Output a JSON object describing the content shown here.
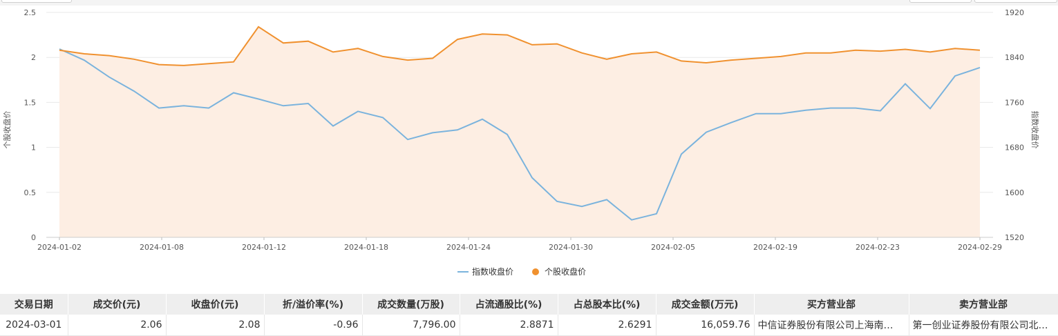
{
  "chart_data": {
    "type": "line",
    "x_ticks": [
      "2024-01-02",
      "2024-01-08",
      "2024-01-12",
      "2024-01-18",
      "2024-01-24",
      "2024-01-30",
      "2024-02-05",
      "2024-02-19",
      "2024-02-23",
      "2024-02-29"
    ],
    "y_left": {
      "label": "个股收盘价",
      "ticks": [
        "0",
        "0.5",
        "1",
        "1.5",
        "2",
        "2.5"
      ],
      "range": [
        0,
        2.5
      ]
    },
    "y_right": {
      "label": "指数收盘价",
      "ticks": [
        "1520",
        "1600",
        "1680",
        "1760",
        "1840",
        "1920"
      ],
      "range": [
        1520,
        1920
      ]
    },
    "series": [
      {
        "name": "指数收盘价",
        "axis": "right",
        "color": "#7ab3dd",
        "values": [
          1855,
          1835,
          1805,
          1780,
          1750,
          1754,
          1750,
          1777,
          1766,
          1754,
          1758,
          1718,
          1744,
          1733,
          1694,
          1706,
          1711,
          1730,
          1703,
          1626,
          1584,
          1575,
          1587,
          1551,
          1562,
          1668,
          1707,
          1724,
          1740,
          1740,
          1746,
          1750,
          1750,
          1745,
          1793,
          1749,
          1807,
          1822
        ]
      },
      {
        "name": "个股收盘价",
        "axis": "left",
        "color": "#f0912f",
        "area_color": "#fdeee3",
        "values": [
          2.08,
          2.04,
          2.02,
          1.98,
          1.92,
          1.91,
          1.93,
          1.95,
          2.34,
          2.16,
          2.18,
          2.06,
          2.1,
          2.01,
          1.97,
          1.99,
          2.2,
          2.26,
          2.25,
          2.14,
          2.15,
          2.05,
          1.98,
          2.04,
          2.06,
          1.96,
          1.94,
          1.97,
          1.99,
          2.01,
          2.05,
          2.05,
          2.08,
          2.07,
          2.09,
          2.06,
          2.1,
          2.08
        ]
      }
    ],
    "legend": [
      "指数收盘价",
      "个股收盘价"
    ],
    "legend_position": "bottom",
    "grid": true
  },
  "table": {
    "headers": [
      "交易日期",
      "成交价(元)",
      "收盘价(元)",
      "折/溢价率(%)",
      "成交数量(万股)",
      "占流通股比(%)",
      "占总股本比(%)",
      "成交金额(万元)",
      "买方营业部",
      "卖方营业部"
    ],
    "row": [
      "2024-03-01",
      "2.06",
      "2.08",
      "-0.96",
      "7,796.00",
      "2.8871",
      "2.6291",
      "16,059.76",
      "中信证券股份有限公司上海南…",
      "第一创业证券股份有限公司北…"
    ]
  }
}
